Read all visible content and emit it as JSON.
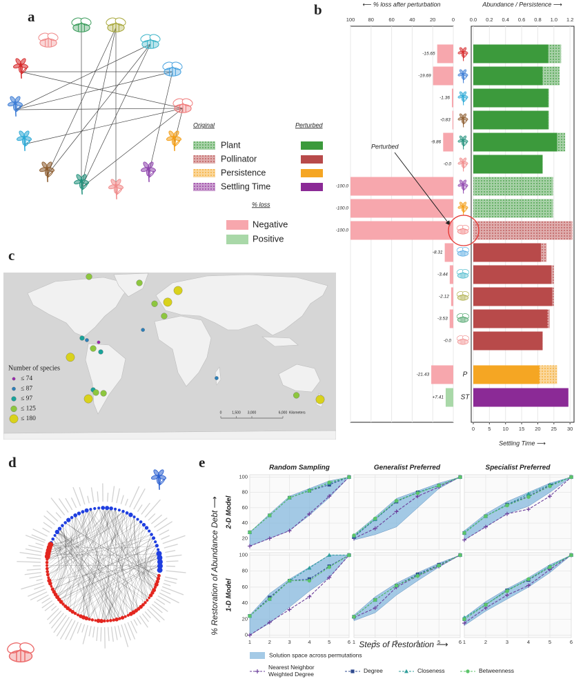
{
  "panel_labels": [
    "a",
    "b",
    "c",
    "d",
    "e"
  ],
  "chart_data": [
    {
      "type": "bar",
      "loss_label": "⟵ % loss after perturbation",
      "loss_xlim": [
        100,
        0
      ],
      "loss_xticks": [
        100,
        80,
        60,
        40,
        20,
        0
      ],
      "xlabel": "Abundance / Persistence ⟶",
      "xlim": [
        0,
        1.25
      ],
      "xticks": [
        {
          "value": 0,
          "label": "0.0"
        },
        {
          "value": 0.2,
          "label": "0.2"
        },
        {
          "value": 0.4,
          "label": "0.4"
        },
        {
          "value": 0.6,
          "label": "0.6"
        },
        {
          "value": 0.8,
          "label": "0.8"
        },
        {
          "value": 1,
          "label": "1.0"
        },
        {
          "value": 1.2,
          "label": "1.2"
        }
      ],
      "x2label": "Settling Time ⟶",
      "x2lim": [
        0,
        31.25
      ],
      "x2ticks": [
        0,
        5,
        10,
        15,
        20,
        25,
        30
      ],
      "series_names": [
        "Original",
        "Perturbed"
      ],
      "loss_title": "% loss",
      "loss_colors": [
        {
          "name": "Negative",
          "color": "#f7a7ad"
        },
        {
          "name": "Positive",
          "color": "#a9d8a8"
        }
      ],
      "annotation": "Perturbed",
      "groups": [
        {
          "name": "Plant",
          "color": "#3c9a3c",
          "icon_colors": [
            "#d62728",
            "#3a7bd5",
            "#29a8d6",
            "#8b5a2b",
            "#1f8f7a",
            "#f08a8a",
            "#8e44ad",
            "#f39c12"
          ],
          "loss": [
            -15.65,
            -19.69,
            -1.36,
            -0.83,
            -9.86,
            0,
            -100,
            -100
          ],
          "loss_labels": [
            "-15.65",
            "-19.69",
            "-1.36",
            "-0.83",
            "-9.86",
            "-0.0",
            "-100.0",
            "-100.0"
          ],
          "original": [
            1.09,
            1.07,
            0.94,
            0.94,
            1.14,
            0.86,
            0.99,
            0.99
          ],
          "perturbed": [
            0.93,
            0.86,
            0.93,
            0.93,
            1.04,
            0.86,
            0,
            0
          ]
        },
        {
          "name": "Pollinator",
          "color": "#b84a4a",
          "icon_colors": [
            "#f07a7a",
            "#4aa3e0",
            "#3fb5c9",
            "#a8a83c",
            "#3c9c5c",
            "#f08a8a"
          ],
          "loss": [
            -100,
            -8.31,
            -3.44,
            -2.12,
            -3.53,
            0
          ],
          "loss_labels": [
            "-100.0",
            "-8.31",
            "-3.44",
            "-2.12",
            "-3.53",
            "-0.0"
          ],
          "original": [
            1.23,
            0.91,
            1.0,
            1.0,
            0.95,
            0.86
          ],
          "perturbed": [
            0,
            0.84,
            0.97,
            0.98,
            0.92,
            0.86
          ]
        },
        {
          "name": "Persistence",
          "color": "#f5a623",
          "label": "P",
          "loss": [
            -21.43
          ],
          "loss_labels": [
            "-21.43"
          ],
          "original": [
            1.04
          ],
          "perturbed": [
            0.82
          ]
        },
        {
          "name": "Settling Time",
          "color": "#8b2a96",
          "label": "ST",
          "axis": "x2",
          "loss": [
            7.41
          ],
          "loss_labels": [
            "+7.41"
          ],
          "original": [
            27.5
          ],
          "perturbed": [
            29.5
          ]
        }
      ]
    },
    {
      "type": "line",
      "ylabel": "% Restoration of Abundance Debt ⟶",
      "xlabel": "Steps of Restoration ⟶",
      "x": [
        1,
        2,
        3,
        4,
        5,
        6
      ],
      "xlim": [
        1,
        6
      ],
      "xticks": [
        1,
        2,
        3,
        4,
        5,
        6
      ],
      "columns": [
        "Random Sampling",
        "Generalist Preferred",
        "Specialist Preferred"
      ],
      "band": {
        "name": "Solution space across permutations",
        "color": "#7eb3dc"
      },
      "series": [
        {
          "name": "Nearest Neighbor Weighted Degree",
          "color": "#6a3d9a",
          "marker": "plus"
        },
        {
          "name": "Degree",
          "color": "#2f4b8f",
          "marker": "square"
        },
        {
          "name": "Closeness",
          "color": "#2f9e9a",
          "marker": "triangle"
        },
        {
          "name": "Betweenness",
          "color": "#5cc46a",
          "marker": "circle"
        }
      ],
      "rows": [
        {
          "label": "2-D Model",
          "ylim": [
            5,
            103
          ],
          "yticks": [
            20,
            40,
            60,
            80,
            100
          ],
          "panels": [
            {
              "lower": [
                10,
                20,
                30,
                50,
                73,
                100
              ],
              "upper": [
                28,
                52,
                75,
                85,
                95,
                100
              ],
              "values": [
                [
                  10,
                  20,
                  30,
                  52,
                  75,
                  100
                ],
                [
                  28,
                  50,
                  73,
                  82,
                  90,
                  100
                ],
                [
                  28,
                  50,
                  73,
                  83,
                  92,
                  100
                ],
                [
                  28,
                  50,
                  73,
                  82,
                  93,
                  100
                ]
              ]
            },
            {
              "lower": [
                18,
                25,
                35,
                60,
                85,
                100
              ],
              "upper": [
                25,
                48,
                72,
                82,
                92,
                100
              ],
              "values": [
                [
                  20,
                  33,
                  55,
                  75,
                  87,
                  100
                ],
                [
                  22,
                  45,
                  68,
                  80,
                  89,
                  100
                ],
                [
                  23,
                  45,
                  69,
                  80,
                  89,
                  100
                ],
                [
                  24,
                  46,
                  69,
                  79,
                  89,
                  100
                ]
              ]
            },
            {
              "lower": [
                18,
                35,
                52,
                62,
                80,
                100
              ],
              "upper": [
                30,
                52,
                68,
                80,
                92,
                100
              ],
              "values": [
                [
                  18,
                  35,
                  52,
                  58,
                  75,
                  100
                ],
                [
                  27,
                  49,
                  64,
                  75,
                  89,
                  100
                ],
                [
                  28,
                  49,
                  64,
                  78,
                  90,
                  100
                ],
                [
                  27,
                  49,
                  63,
                  74,
                  88,
                  100
                ]
              ]
            }
          ]
        },
        {
          "label": "1-D Model",
          "ylim": [
            -3,
            103
          ],
          "yticks": [
            0,
            20,
            40,
            60,
            80,
            100
          ],
          "panels": [
            {
              "lower": [
                0,
                15,
                35,
                55,
                72,
                100
              ],
              "upper": [
                25,
                52,
                70,
                85,
                100,
                100
              ],
              "values": [
                [
                  0,
                  16,
                  32,
                  48,
                  72,
                  100
                ],
                [
                  24,
                  47,
                  68,
                  70,
                  86,
                  100
                ],
                [
                  24,
                  45,
                  68,
                  84,
                  100,
                  100
                ],
                [
                  24,
                  45,
                  68,
                  68,
                  85,
                  100
                ]
              ]
            },
            {
              "lower": [
                18,
                28,
                50,
                68,
                85,
                100
              ],
              "upper": [
                25,
                48,
                65,
                78,
                90,
                100
              ],
              "values": [
                [
                  22,
                  34,
                  60,
                  74,
                  86,
                  100
                ],
                [
                  23,
                  44,
                  62,
                  76,
                  88,
                  100
                ],
                [
                  23,
                  44,
                  62,
                  75,
                  87,
                  100
                ],
                [
                  23,
                  44,
                  62,
                  74,
                  87,
                  100
                ]
              ]
            },
            {
              "lower": [
                12,
                30,
                45,
                60,
                78,
                100
              ],
              "upper": [
                22,
                42,
                58,
                72,
                88,
                100
              ],
              "values": [
                [
                  15,
                  34,
                  50,
                  62,
                  82,
                  100
                ],
                [
                  20,
                  38,
                  56,
                  69,
                  85,
                  100
                ],
                [
                  22,
                  38,
                  56,
                  70,
                  86,
                  100
                ],
                [
                  20,
                  38,
                  55,
                  70,
                  85,
                  100
                ]
              ]
            }
          ]
        }
      ]
    }
  ],
  "map": {
    "legend_title": "Number of species",
    "size_classes": [
      {
        "value": 74,
        "label": "≤ 74",
        "color": "#9c27b0"
      },
      {
        "value": 87,
        "label": "≤ 87",
        "color": "#2c7fb8"
      },
      {
        "value": 97,
        "label": "≤ 97",
        "color": "#1aa39a"
      },
      {
        "value": 125,
        "label": "≤ 125",
        "color": "#8dc63f"
      },
      {
        "value": 180,
        "label": "≤ 180",
        "color": "#d9d21c"
      }
    ],
    "scale": {
      "ticks": [
        0,
        {
          "value": 1500,
          "label": "1,500"
        },
        {
          "value": 3000,
          "label": "3,000"
        },
        {
          "value": 6000,
          "label": "6,000"
        }
      ],
      "unit": "Kilometers"
    },
    "sites": [
      {
        "lon": -87.3,
        "lat": 70.3,
        "size_class": 125
      },
      {
        "lon": -32.8,
        "lat": 64.5,
        "size_class": 125
      },
      {
        "lon": 9,
        "lat": 57.4,
        "size_class": 180
      },
      {
        "lon": -2.2,
        "lat": 46.5,
        "size_class": 180
      },
      {
        "lon": -16.4,
        "lat": 45,
        "size_class": 125
      },
      {
        "lon": -6,
        "lat": 33.5,
        "size_class": 125
      },
      {
        "lon": -29,
        "lat": 20.6,
        "size_class": 87
      },
      {
        "lon": -94.8,
        "lat": 12.9,
        "size_class": 97
      },
      {
        "lon": -89.6,
        "lat": 11,
        "size_class": 87
      },
      {
        "lon": -76.9,
        "lat": 9,
        "size_class": 74
      },
      {
        "lon": -82.8,
        "lat": 3.2,
        "size_class": 125
      },
      {
        "lon": -74.6,
        "lat": 0,
        "size_class": 97
      },
      {
        "lon": -107.5,
        "lat": -5,
        "size_class": 180
      },
      {
        "lon": -82.8,
        "lat": -35.5,
        "size_class": 97
      },
      {
        "lon": -79.8,
        "lat": -38,
        "size_class": 125
      },
      {
        "lon": -88,
        "lat": -43.9,
        "size_class": 180
      },
      {
        "lon": -71.6,
        "lat": -38.7,
        "size_class": 125
      },
      {
        "lon": 50.7,
        "lat": -24.5,
        "size_class": 87
      },
      {
        "lon": 137,
        "lat": -40.6,
        "size_class": 125
      },
      {
        "lon": 162.7,
        "lat": -44.5,
        "size_class": 180
      }
    ]
  }
}
